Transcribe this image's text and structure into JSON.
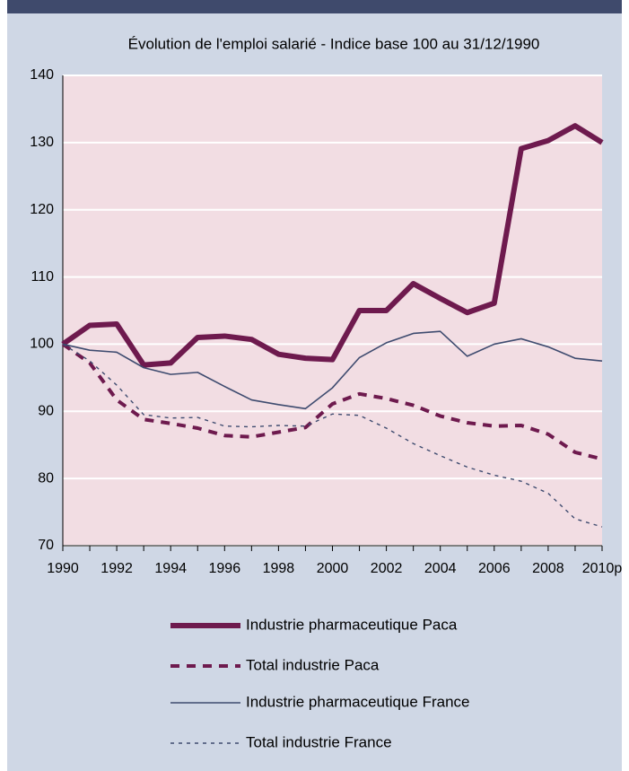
{
  "chart_data": {
    "type": "line",
    "title": "Évolution de l'emploi salarié - Indice base 100 au 31/12/1990",
    "x": [
      1990,
      1991,
      1992,
      1993,
      1994,
      1995,
      1996,
      1997,
      1998,
      1999,
      2000,
      2001,
      2002,
      2003,
      2004,
      2005,
      2006,
      2007,
      2008,
      2009,
      2010
    ],
    "xlim": [
      1990,
      2010
    ],
    "xticks": [
      1990,
      1992,
      1994,
      1996,
      1998,
      2000,
      2002,
      2004,
      2006,
      2008,
      {
        "value": 2010,
        "label": "2010p"
      }
    ],
    "ylim": [
      70,
      140
    ],
    "yticks": [
      70,
      80,
      90,
      100,
      110,
      120,
      130,
      140
    ],
    "grid": true,
    "series": [
      {
        "name": "Industrie pharmaceutique Paca",
        "color": "#6e1a4e",
        "style": "thick",
        "values": [
          100,
          102.8,
          103,
          96.9,
          97.2,
          101,
          101.2,
          100.7,
          98.5,
          97.9,
          97.7,
          105,
          105,
          109,
          106.8,
          104.7,
          106.1,
          129.1,
          130.3,
          132.5,
          130
        ]
      },
      {
        "name": "Total industrie Paca",
        "color": "#6e1a4e",
        "style": "dashed",
        "values": [
          100,
          97.2,
          91.7,
          88.8,
          88.2,
          87.5,
          86.4,
          86.2,
          86.9,
          87.6,
          91.1,
          92.6,
          91.9,
          90.9,
          89.3,
          88.3,
          87.8,
          87.9,
          86.6,
          83.9,
          82.9
        ]
      },
      {
        "name": "Industrie pharmaceutique  France",
        "color": "#3e4b6f",
        "style": "thin",
        "values": [
          100,
          99.1,
          98.8,
          96.5,
          95.5,
          95.8,
          93.7,
          91.7,
          91.0,
          90.4,
          93.5,
          98,
          100.2,
          101.6,
          101.9,
          98.2,
          100,
          100.8,
          99.6,
          97.9,
          97.5
        ]
      },
      {
        "name": "Total industrie France",
        "color": "#3e4b6f",
        "style": "dotted",
        "values": [
          100,
          97.5,
          93.9,
          89.5,
          89,
          89.1,
          87.8,
          87.7,
          87.9,
          87.8,
          89.6,
          89.4,
          87.5,
          85.2,
          83.4,
          81.7,
          80.5,
          79.6,
          77.8,
          74,
          72.8
        ]
      }
    ]
  }
}
